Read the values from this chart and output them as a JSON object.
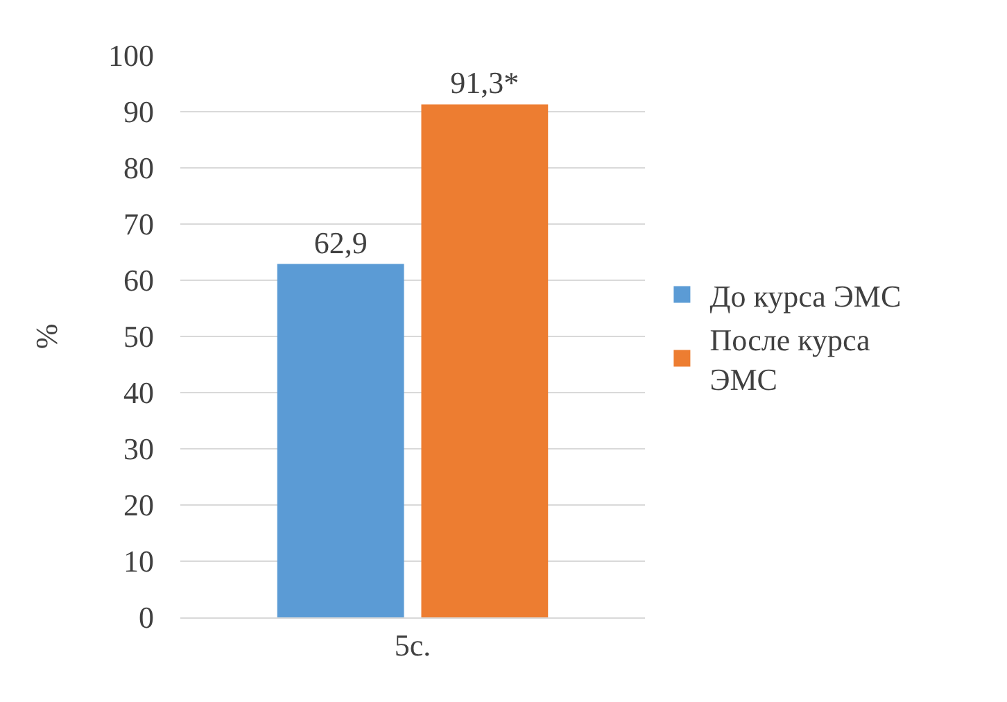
{
  "chart_data": {
    "type": "bar",
    "categories": [
      "5с."
    ],
    "ylabel": "%",
    "ylim": [
      0,
      100
    ],
    "yticks": [
      0,
      10,
      20,
      30,
      40,
      50,
      60,
      70,
      80,
      90,
      100
    ],
    "grid": "y",
    "legend": "right",
    "series": [
      {
        "name": "До курса ЭМС",
        "color": "#5b9bd5",
        "values": [
          62.9
        ],
        "value_labels": [
          "62,9"
        ]
      },
      {
        "name": "После курса ЭМС",
        "color": "#ed7d31",
        "values": [
          91.3
        ],
        "value_labels": [
          "91,3*"
        ]
      }
    ]
  }
}
